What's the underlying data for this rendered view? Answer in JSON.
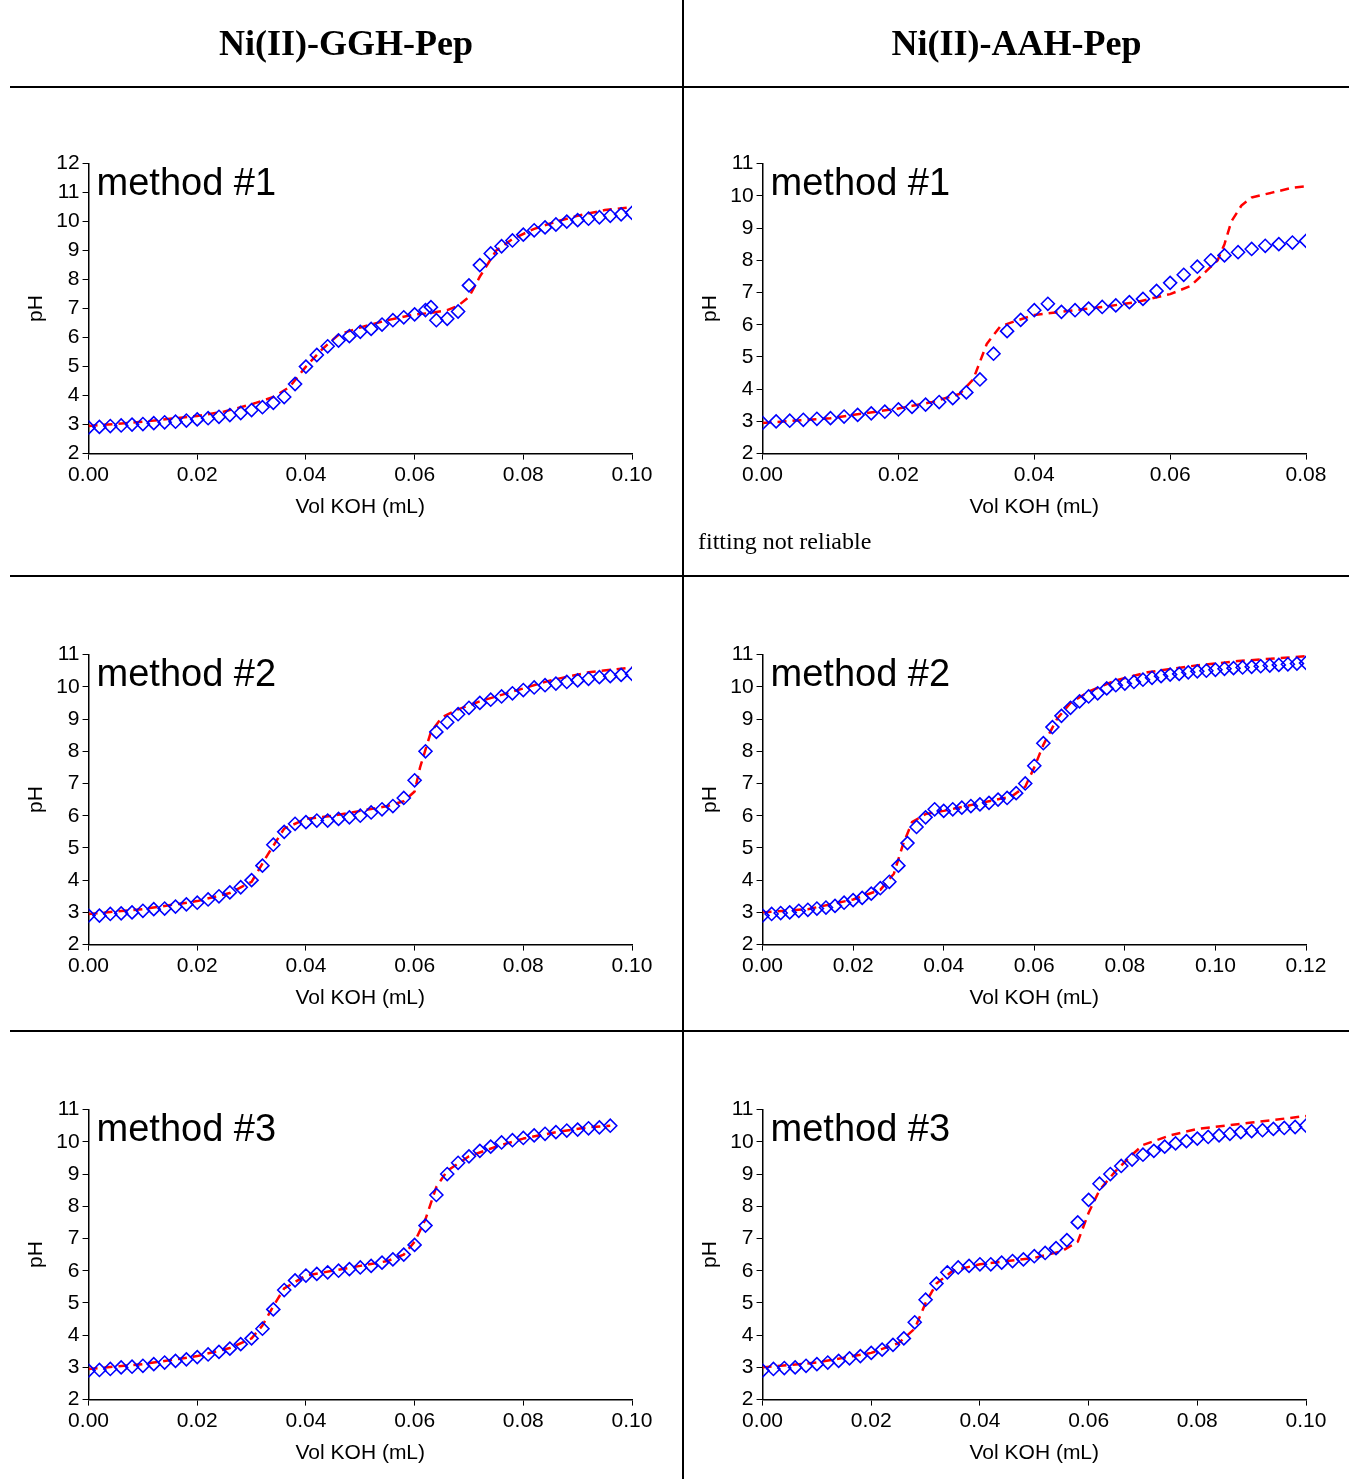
{
  "chart_data": [
    {
      "type": "scatter",
      "title": "Ni(II)-GGH-Pep",
      "xlabel": "Vol KOH (mL)",
      "ylabel": "pH",
      "annotations": [
        "method #1"
      ],
      "xlim": [
        0,
        0.1
      ],
      "xticks": [
        {
          "value": 0,
          "label": "0.00"
        },
        {
          "value": 0.02,
          "label": "0.02"
        },
        {
          "value": 0.04,
          "label": "0.04"
        },
        {
          "value": 0.06,
          "label": "0.06"
        },
        {
          "value": 0.08,
          "label": "0.08"
        },
        {
          "value": 0.1,
          "label": "0.10"
        }
      ],
      "ylim": [
        2,
        12
      ],
      "yticks": [
        2,
        3,
        4,
        5,
        6,
        7,
        8,
        9,
        10,
        11,
        12
      ],
      "series": [
        {
          "type": "scatter",
          "color": "#0000ff",
          "marker": "diamond",
          "x": [
            0,
            0.002,
            0.004,
            0.006,
            0.008,
            0.01,
            0.012,
            0.014,
            0.016,
            0.018,
            0.02,
            0.022,
            0.024,
            0.026,
            0.028,
            0.03,
            0.032,
            0.034,
            0.036,
            0.038,
            0.04,
            0.042,
            0.044,
            0.046,
            0.048,
            0.05,
            0.052,
            0.054,
            0.056,
            0.058,
            0.06,
            0.062,
            0.063,
            0.064,
            0.066,
            0.068,
            0.07,
            0.072,
            0.074,
            0.076,
            0.078,
            0.08,
            0.082,
            0.084,
            0.086,
            0.088,
            0.09,
            0.092,
            0.094,
            0.096,
            0.098,
            0.1
          ],
          "values": [
            2.9,
            2.92,
            2.95,
            2.97,
            3.0,
            3.02,
            3.05,
            3.08,
            3.1,
            3.14,
            3.18,
            3.22,
            3.27,
            3.33,
            3.4,
            3.5,
            3.6,
            3.75,
            3.95,
            4.4,
            5.0,
            5.4,
            5.7,
            5.9,
            6.05,
            6.2,
            6.3,
            6.45,
            6.6,
            6.7,
            6.8,
            6.95,
            7.05,
            6.6,
            6.65,
            6.9,
            7.8,
            8.5,
            8.9,
            9.15,
            9.35,
            9.55,
            9.7,
            9.8,
            9.9,
            10.0,
            10.05,
            10.1,
            10.15,
            10.2,
            10.25,
            10.3
          ]
        },
        {
          "type": "line",
          "color": "#ff0000",
          "marker": "none",
          "line_style": "dashed",
          "x": [
            0,
            0.01,
            0.02,
            0.025,
            0.03,
            0.034,
            0.037,
            0.04,
            0.043,
            0.046,
            0.05,
            0.055,
            0.06,
            0.063,
            0.066,
            0.068,
            0.07,
            0.072,
            0.075,
            0.078,
            0.082,
            0.086,
            0.09,
            0.095,
            0.1
          ],
          "values": [
            2.95,
            3.1,
            3.3,
            3.45,
            3.7,
            3.95,
            4.3,
            5.0,
            5.6,
            6.1,
            6.35,
            6.6,
            6.8,
            6.85,
            6.95,
            7.1,
            7.4,
            8.1,
            9.0,
            9.4,
            9.75,
            10.0,
            10.2,
            10.4,
            10.5
          ]
        }
      ]
    },
    {
      "type": "scatter",
      "title": "Ni(II)-AAH-Pep",
      "xlabel": "Vol KOH (mL)",
      "ylabel": "pH",
      "annotations": [
        "method #1",
        "fitting not reliable"
      ],
      "xlim": [
        0,
        0.08
      ],
      "xticks": [
        {
          "value": 0,
          "label": "0.00"
        },
        {
          "value": 0.02,
          "label": "0.02"
        },
        {
          "value": 0.04,
          "label": "0.04"
        },
        {
          "value": 0.06,
          "label": "0.06"
        },
        {
          "value": 0.08,
          "label": "0.08"
        }
      ],
      "ylim": [
        2,
        11
      ],
      "yticks": [
        2,
        3,
        4,
        5,
        6,
        7,
        8,
        9,
        10,
        11
      ],
      "series": [
        {
          "type": "scatter",
          "color": "#0000ff",
          "marker": "diamond",
          "x": [
            0,
            0.002,
            0.004,
            0.006,
            0.008,
            0.01,
            0.012,
            0.014,
            0.016,
            0.018,
            0.02,
            0.022,
            0.024,
            0.026,
            0.028,
            0.03,
            0.032,
            0.034,
            0.036,
            0.038,
            0.04,
            0.042,
            0.044,
            0.046,
            0.048,
            0.05,
            0.052,
            0.054,
            0.056,
            0.058,
            0.06,
            0.062,
            0.064,
            0.066,
            0.068,
            0.07,
            0.072,
            0.074,
            0.076,
            0.078,
            0.08
          ],
          "values": [
            2.95,
            3.0,
            3.02,
            3.05,
            3.08,
            3.1,
            3.15,
            3.2,
            3.25,
            3.3,
            3.37,
            3.45,
            3.52,
            3.6,
            3.72,
            3.9,
            4.3,
            5.1,
            5.8,
            6.15,
            6.45,
            6.65,
            6.4,
            6.45,
            6.5,
            6.55,
            6.6,
            6.7,
            6.8,
            7.05,
            7.3,
            7.55,
            7.8,
            8.0,
            8.15,
            8.25,
            8.35,
            8.45,
            8.5,
            8.55,
            8.6
          ]
        },
        {
          "type": "line",
          "color": "#ff0000",
          "marker": "none",
          "line_style": "dashed",
          "x": [
            0,
            0.01,
            0.02,
            0.025,
            0.029,
            0.031,
            0.033,
            0.035,
            0.037,
            0.04,
            0.044,
            0.05,
            0.055,
            0.06,
            0.063,
            0.065,
            0.067,
            0.068,
            0.069,
            0.0705,
            0.072,
            0.075,
            0.078,
            0.08
          ],
          "values": [
            2.95,
            3.1,
            3.4,
            3.6,
            3.85,
            4.3,
            5.4,
            5.95,
            6.1,
            6.3,
            6.4,
            6.55,
            6.7,
            6.95,
            7.2,
            7.6,
            8.0,
            8.5,
            9.2,
            9.7,
            9.95,
            10.1,
            10.25,
            10.3
          ]
        }
      ]
    },
    {
      "type": "scatter",
      "xlabel": "Vol KOH (mL)",
      "ylabel": "pH",
      "annotations": [
        "method #2"
      ],
      "xlim": [
        0,
        0.1
      ],
      "xticks": [
        {
          "value": 0,
          "label": "0.00"
        },
        {
          "value": 0.02,
          "label": "0.02"
        },
        {
          "value": 0.04,
          "label": "0.04"
        },
        {
          "value": 0.06,
          "label": "0.06"
        },
        {
          "value": 0.08,
          "label": "0.08"
        },
        {
          "value": 0.1,
          "label": "0.10"
        }
      ],
      "ylim": [
        2,
        11
      ],
      "yticks": [
        2,
        3,
        4,
        5,
        6,
        7,
        8,
        9,
        10,
        11
      ],
      "series": [
        {
          "type": "scatter",
          "color": "#0000ff",
          "marker": "diamond",
          "x": [
            0,
            0.002,
            0.004,
            0.006,
            0.008,
            0.01,
            0.012,
            0.014,
            0.016,
            0.018,
            0.02,
            0.022,
            0.024,
            0.026,
            0.028,
            0.03,
            0.032,
            0.034,
            0.036,
            0.038,
            0.04,
            0.042,
            0.044,
            0.046,
            0.048,
            0.05,
            0.052,
            0.054,
            0.056,
            0.058,
            0.06,
            0.062,
            0.064,
            0.066,
            0.068,
            0.07,
            0.072,
            0.074,
            0.076,
            0.078,
            0.08,
            0.082,
            0.084,
            0.086,
            0.088,
            0.09,
            0.092,
            0.094,
            0.096,
            0.098,
            0.1
          ],
          "values": [
            2.9,
            2.9,
            2.95,
            2.97,
            3.0,
            3.05,
            3.1,
            3.12,
            3.18,
            3.25,
            3.3,
            3.4,
            3.5,
            3.62,
            3.78,
            4.0,
            4.45,
            5.1,
            5.5,
            5.75,
            5.8,
            5.85,
            5.85,
            5.9,
            5.95,
            6.0,
            6.1,
            6.2,
            6.3,
            6.55,
            7.1,
            8.0,
            8.6,
            8.9,
            9.15,
            9.35,
            9.5,
            9.6,
            9.7,
            9.8,
            9.9,
            9.98,
            10.05,
            10.1,
            10.15,
            10.2,
            10.25,
            10.3,
            10.33,
            10.37,
            10.4
          ]
        },
        {
          "type": "line",
          "color": "#ff0000",
          "marker": "none",
          "line_style": "dashed",
          "x": [
            0,
            0.01,
            0.02,
            0.026,
            0.03,
            0.033,
            0.036,
            0.04,
            0.045,
            0.05,
            0.055,
            0.058,
            0.06,
            0.061,
            0.063,
            0.065,
            0.068,
            0.072,
            0.078,
            0.085,
            0.092,
            0.1
          ],
          "values": [
            2.95,
            3.1,
            3.35,
            3.6,
            3.95,
            4.8,
            5.6,
            5.9,
            6.0,
            6.15,
            6.3,
            6.45,
            6.75,
            7.5,
            8.6,
            9.05,
            9.3,
            9.55,
            9.85,
            10.2,
            10.45,
            10.6
          ]
        }
      ]
    },
    {
      "type": "scatter",
      "xlabel": "Vol KOH (mL)",
      "ylabel": "pH",
      "annotations": [
        "method #2"
      ],
      "xlim": [
        0,
        0.12
      ],
      "xticks": [
        {
          "value": 0,
          "label": "0.00"
        },
        {
          "value": 0.02,
          "label": "0.02"
        },
        {
          "value": 0.04,
          "label": "0.04"
        },
        {
          "value": 0.06,
          "label": "0.06"
        },
        {
          "value": 0.08,
          "label": "0.08"
        },
        {
          "value": 0.1,
          "label": "0.10"
        },
        {
          "value": 0.12,
          "label": "0.12"
        }
      ],
      "ylim": [
        2,
        11
      ],
      "yticks": [
        2,
        3,
        4,
        5,
        6,
        7,
        8,
        9,
        10,
        11
      ],
      "series": [
        {
          "type": "scatter",
          "color": "#0000ff",
          "marker": "diamond",
          "x": [
            0,
            0.002,
            0.004,
            0.006,
            0.008,
            0.01,
            0.012,
            0.014,
            0.016,
            0.018,
            0.02,
            0.022,
            0.024,
            0.026,
            0.028,
            0.03,
            0.032,
            0.034,
            0.036,
            0.038,
            0.04,
            0.042,
            0.044,
            0.046,
            0.048,
            0.05,
            0.052,
            0.054,
            0.056,
            0.058,
            0.06,
            0.062,
            0.064,
            0.066,
            0.068,
            0.07,
            0.072,
            0.074,
            0.076,
            0.078,
            0.08,
            0.082,
            0.084,
            0.086,
            0.088,
            0.09,
            0.092,
            0.094,
            0.096,
            0.098,
            0.1,
            0.102,
            0.104,
            0.106,
            0.108,
            0.11,
            0.112,
            0.114,
            0.116,
            0.118,
            0.12
          ],
          "values": [
            2.9,
            2.95,
            2.98,
            3.0,
            3.05,
            3.08,
            3.12,
            3.15,
            3.2,
            3.3,
            3.38,
            3.45,
            3.58,
            3.75,
            3.95,
            4.45,
            5.15,
            5.65,
            5.95,
            6.2,
            6.15,
            6.2,
            6.25,
            6.3,
            6.35,
            6.4,
            6.5,
            6.55,
            6.7,
            7.0,
            7.55,
            8.25,
            8.75,
            9.1,
            9.35,
            9.55,
            9.7,
            9.8,
            9.95,
            10.05,
            10.1,
            10.15,
            10.22,
            10.28,
            10.33,
            10.38,
            10.4,
            10.45,
            10.48,
            10.5,
            10.53,
            10.56,
            10.58,
            10.6,
            10.62,
            10.64,
            10.66,
            10.68,
            10.7,
            10.72,
            10.74
          ]
        },
        {
          "type": "line",
          "color": "#ff0000",
          "marker": "none",
          "line_style": "dashed",
          "x": [
            0,
            0.01,
            0.02,
            0.026,
            0.029,
            0.031,
            0.033,
            0.036,
            0.04,
            0.045,
            0.05,
            0.055,
            0.058,
            0.06,
            0.062,
            0.065,
            0.068,
            0.072,
            0.078,
            0.085,
            0.095,
            0.105,
            0.12
          ],
          "values": [
            3.0,
            3.1,
            3.4,
            3.7,
            4.2,
            5.1,
            5.8,
            6.05,
            6.15,
            6.3,
            6.45,
            6.6,
            6.9,
            7.5,
            8.2,
            9.0,
            9.5,
            9.85,
            10.2,
            10.45,
            10.65,
            10.8,
            10.95
          ]
        }
      ]
    },
    {
      "type": "scatter",
      "xlabel": "Vol KOH (mL)",
      "ylabel": "pH",
      "annotations": [
        "method #3"
      ],
      "xlim": [
        0,
        0.1
      ],
      "xticks": [
        {
          "value": 0,
          "label": "0.00"
        },
        {
          "value": 0.02,
          "label": "0.02"
        },
        {
          "value": 0.04,
          "label": "0.04"
        },
        {
          "value": 0.06,
          "label": "0.06"
        },
        {
          "value": 0.08,
          "label": "0.08"
        },
        {
          "value": 0.1,
          "label": "0.10"
        }
      ],
      "ylim": [
        2,
        11
      ],
      "yticks": [
        2,
        3,
        4,
        5,
        6,
        7,
        8,
        9,
        10,
        11
      ],
      "series": [
        {
          "type": "scatter",
          "color": "#0000ff",
          "marker": "diamond",
          "x": [
            0,
            0.002,
            0.004,
            0.006,
            0.008,
            0.01,
            0.012,
            0.014,
            0.016,
            0.018,
            0.02,
            0.022,
            0.024,
            0.026,
            0.028,
            0.03,
            0.032,
            0.034,
            0.036,
            0.038,
            0.04,
            0.042,
            0.044,
            0.046,
            0.048,
            0.05,
            0.052,
            0.054,
            0.056,
            0.058,
            0.06,
            0.062,
            0.064,
            0.066,
            0.068,
            0.07,
            0.072,
            0.074,
            0.076,
            0.078,
            0.08,
            0.082,
            0.084,
            0.086,
            0.088,
            0.09,
            0.092,
            0.094,
            0.096
          ],
          "values": [
            2.9,
            2.92,
            2.95,
            3.0,
            3.02,
            3.05,
            3.1,
            3.15,
            3.2,
            3.25,
            3.32,
            3.4,
            3.48,
            3.58,
            3.72,
            3.9,
            4.2,
            4.8,
            5.4,
            5.7,
            5.85,
            5.9,
            5.95,
            6.0,
            6.05,
            6.1,
            6.15,
            6.25,
            6.35,
            6.5,
            6.8,
            7.4,
            8.35,
            9.0,
            9.35,
            9.55,
            9.72,
            9.85,
            9.98,
            10.05,
            10.12,
            10.2,
            10.25,
            10.3,
            10.35,
            10.38,
            10.42,
            10.45,
            10.5
          ]
        },
        {
          "type": "line",
          "color": "#ff0000",
          "marker": "none",
          "line_style": "dashed",
          "x": [
            0,
            0.01,
            0.02,
            0.026,
            0.03,
            0.032,
            0.034,
            0.036,
            0.04,
            0.045,
            0.05,
            0.055,
            0.058,
            0.06,
            0.062,
            0.064,
            0.066,
            0.07,
            0.075,
            0.08,
            0.086,
            0.092,
            0.096
          ],
          "values": [
            2.95,
            3.1,
            3.35,
            3.6,
            3.9,
            4.3,
            4.9,
            5.45,
            5.85,
            6.0,
            6.15,
            6.3,
            6.5,
            6.9,
            7.6,
            8.6,
            9.1,
            9.55,
            9.85,
            10.1,
            10.3,
            10.45,
            10.5
          ]
        }
      ]
    },
    {
      "type": "scatter",
      "xlabel": "Vol KOH (mL)",
      "ylabel": "pH",
      "annotations": [
        "method #3"
      ],
      "xlim": [
        0,
        0.1
      ],
      "xticks": [
        {
          "value": 0,
          "label": "0.00"
        },
        {
          "value": 0.02,
          "label": "0.02"
        },
        {
          "value": 0.04,
          "label": "0.04"
        },
        {
          "value": 0.06,
          "label": "0.06"
        },
        {
          "value": 0.08,
          "label": "0.08"
        },
        {
          "value": 0.1,
          "label": "0.10"
        }
      ],
      "ylim": [
        2,
        11
      ],
      "yticks": [
        2,
        3,
        4,
        5,
        6,
        7,
        8,
        9,
        10,
        11
      ],
      "series": [
        {
          "type": "scatter",
          "color": "#0000ff",
          "marker": "diamond",
          "x": [
            0,
            0.002,
            0.004,
            0.006,
            0.008,
            0.01,
            0.012,
            0.014,
            0.016,
            0.018,
            0.02,
            0.022,
            0.024,
            0.026,
            0.028,
            0.03,
            0.032,
            0.034,
            0.036,
            0.038,
            0.04,
            0.042,
            0.044,
            0.046,
            0.048,
            0.05,
            0.052,
            0.054,
            0.056,
            0.058,
            0.06,
            0.062,
            0.064,
            0.066,
            0.068,
            0.07,
            0.072,
            0.074,
            0.076,
            0.078,
            0.08,
            0.082,
            0.084,
            0.086,
            0.088,
            0.09,
            0.092,
            0.094,
            0.096,
            0.098,
            0.1
          ],
          "values": [
            2.9,
            2.95,
            2.98,
            3.0,
            3.05,
            3.1,
            3.15,
            3.2,
            3.28,
            3.35,
            3.45,
            3.55,
            3.7,
            3.9,
            4.4,
            5.1,
            5.6,
            5.95,
            6.1,
            6.15,
            6.2,
            6.2,
            6.25,
            6.3,
            6.35,
            6.45,
            6.55,
            6.7,
            6.95,
            7.5,
            8.2,
            8.7,
            9.0,
            9.25,
            9.45,
            9.6,
            9.72,
            9.85,
            9.95,
            10.02,
            10.1,
            10.15,
            10.2,
            10.25,
            10.3,
            10.33,
            10.36,
            10.4,
            10.43,
            10.46,
            10.5
          ]
        },
        {
          "type": "line",
          "color": "#ff0000",
          "marker": "none",
          "line_style": "dashed",
          "x": [
            0,
            0.01,
            0.02,
            0.025,
            0.028,
            0.03,
            0.032,
            0.035,
            0.04,
            0.045,
            0.05,
            0.055,
            0.058,
            0.06,
            0.062,
            0.065,
            0.068,
            0.07,
            0.075,
            0.08,
            0.09,
            0.1
          ],
          "values": [
            3.0,
            3.15,
            3.45,
            3.75,
            4.2,
            5.0,
            5.6,
            6.0,
            6.2,
            6.3,
            6.4,
            6.6,
            6.9,
            7.8,
            8.5,
            9.1,
            9.6,
            9.9,
            10.2,
            10.4,
            10.6,
            10.8
          ]
        }
      ]
    }
  ]
}
